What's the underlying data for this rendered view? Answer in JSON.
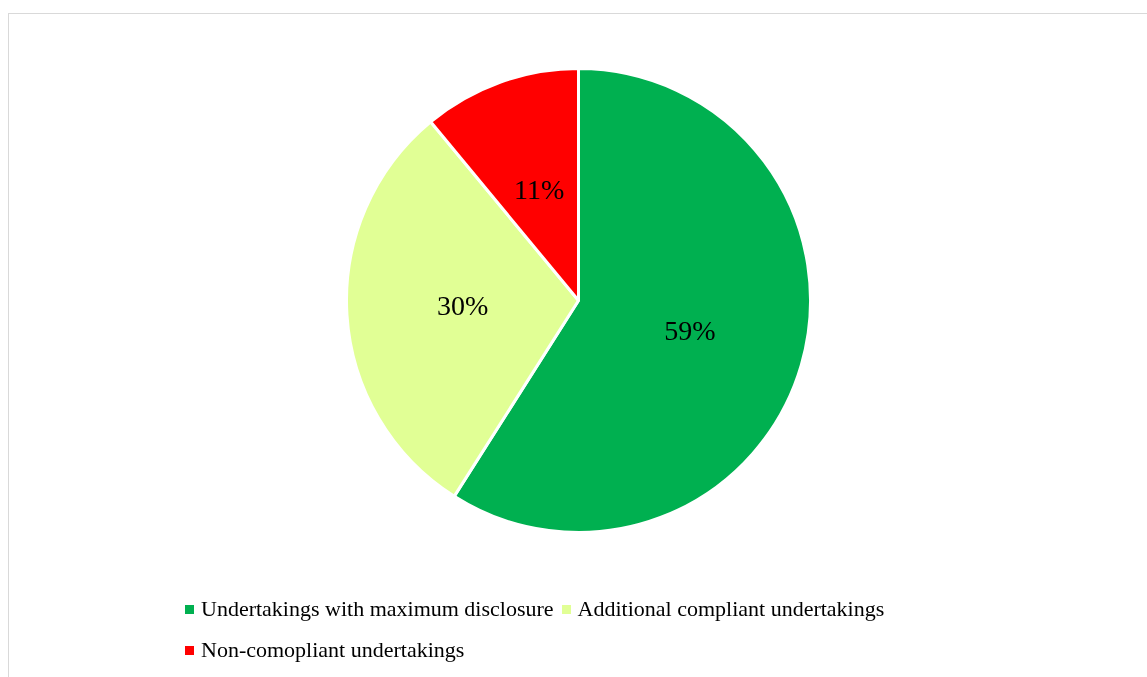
{
  "chart_data": {
    "type": "pie",
    "categories": [
      "Undertakings with maximum disclosure",
      "Additional compliant undertakings",
      "Non-comopliant undertakings"
    ],
    "values": [
      59,
      30,
      11
    ],
    "colors": [
      "#00b050",
      "#e1ff95",
      "#ff0000"
    ],
    "value_labels": [
      "59%",
      "30%",
      "11%"
    ],
    "legend": "bottom"
  }
}
